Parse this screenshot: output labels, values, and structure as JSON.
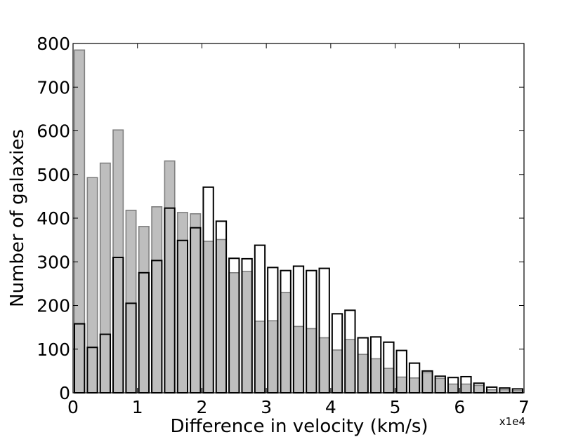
{
  "chart_data": {
    "type": "bar",
    "title": "",
    "xlabel": "Difference in velocity (km/s)",
    "ylabel": "Number of galaxies",
    "x_offset_label": "x1e4",
    "xlim": [
      0,
      7
    ],
    "ylim": [
      0,
      800
    ],
    "xticks": [
      0,
      1,
      2,
      3,
      4,
      5,
      6,
      7
    ],
    "yticks": [
      0,
      100,
      200,
      300,
      400,
      500,
      600,
      700,
      800
    ],
    "bin_width": 0.2,
    "bin_starts": [
      0.0,
      0.2,
      0.4,
      0.6,
      0.8,
      1.0,
      1.2,
      1.4,
      1.6,
      1.8,
      2.0,
      2.2,
      2.4,
      2.6,
      2.8,
      3.0,
      3.2,
      3.4,
      3.6,
      3.8,
      4.0,
      4.2,
      4.4,
      4.6,
      4.8,
      5.0,
      5.2,
      5.4,
      5.6,
      5.8,
      6.0,
      6.2,
      6.4,
      6.6,
      6.8
    ],
    "series": [
      {
        "name": "filled-gray",
        "style": "filled",
        "color": "#bebebe",
        "edge_color": "#808080",
        "values": [
          785,
          493,
          526,
          602,
          418,
          381,
          426,
          531,
          413,
          410,
          347,
          351,
          275,
          278,
          164,
          165,
          230,
          152,
          147,
          126,
          98,
          122,
          88,
          78,
          56,
          36,
          34,
          46,
          33,
          20,
          20,
          17,
          7,
          7,
          5
        ]
      },
      {
        "name": "outline-black",
        "style": "outline",
        "color": "#000000",
        "values": [
          158,
          104,
          134,
          310,
          205,
          275,
          303,
          423,
          349,
          378,
          471,
          393,
          308,
          307,
          338,
          287,
          280,
          290,
          280,
          285,
          181,
          189,
          126,
          128,
          116,
          97,
          68,
          50,
          38,
          35,
          37,
          22,
          13,
          11,
          9
        ]
      }
    ]
  }
}
